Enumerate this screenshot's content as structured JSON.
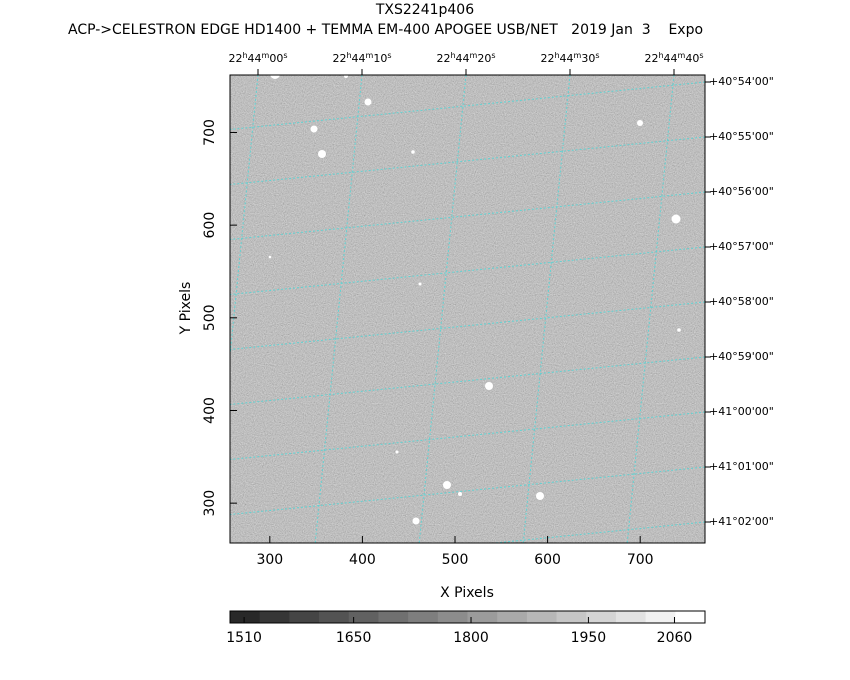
{
  "chart_data": {
    "type": "image",
    "title": "TXS2241p406",
    "subtitle": "ACP->CELESTRON EDGE HD1400 + TEMMA EM-400 APOGEE USB/NET   2019 Jan  3    Expo",
    "xlabel": "X Pixels",
    "ylabel": "Y Pixels",
    "xlim": [
      257,
      770
    ],
    "ylim": [
      257,
      762
    ],
    "xticks": [
      300,
      400,
      500,
      600,
      700
    ],
    "yticks": [
      300,
      400,
      500,
      600,
      700
    ],
    "ra_labels": [
      [
        "22",
        "h",
        "44",
        "m",
        "00",
        "s"
      ],
      [
        "22",
        "h",
        "44",
        "m",
        "10",
        "s"
      ],
      [
        "22",
        "h",
        "44",
        "m",
        "20",
        "s"
      ],
      [
        "22",
        "h",
        "44",
        "m",
        "30",
        "s"
      ],
      [
        "22",
        "h",
        "44",
        "m",
        "40",
        "s"
      ]
    ],
    "dec_labels": [
      "+40°54'00\"",
      "+40°55'00\"",
      "+40°56'00\"",
      "+40°57'00\"",
      "+40°58'00\"",
      "+40°59'00\"",
      "+41°00'00\"",
      "+41°01'00\"",
      "+41°02'00\""
    ],
    "grid_color": "#5fd3d3",
    "colorbar_lim": [
      1492,
      2099
    ],
    "colorbar_ticks": [
      1510,
      1650,
      1800,
      1950,
      2060
    ]
  }
}
